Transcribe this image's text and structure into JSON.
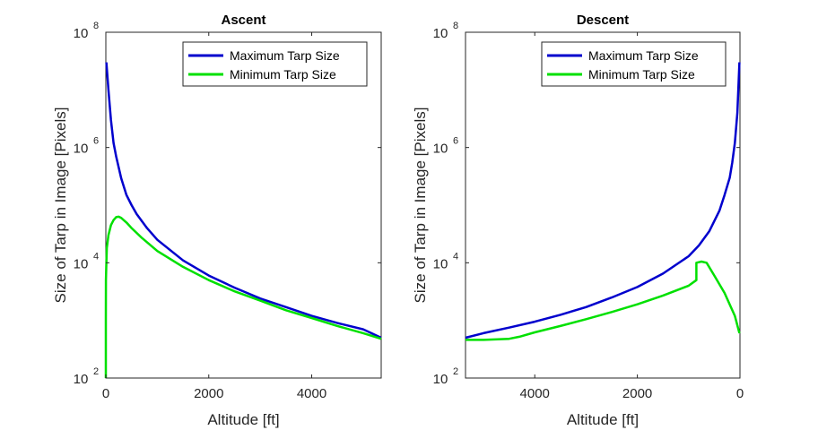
{
  "figure": {
    "ylabel": "Size of Tarp in Image [Pixels]",
    "xlabel": "Altitude [ft]"
  },
  "chart_data": [
    {
      "type": "line",
      "title": "Ascent",
      "xlabel": "Altitude [ft]",
      "ylabel": "Size of Tarp in Image [Pixels]",
      "xlim": [
        0,
        5350
      ],
      "ylim": [
        100,
        100000000
      ],
      "yscale": "log",
      "xdir": "normal",
      "xticks": [
        0,
        2000,
        4000
      ],
      "xtick_labels": [
        "0",
        "2000",
        "4000"
      ],
      "yticks": [
        100,
        10000,
        1000000,
        100000000
      ],
      "ytick_labels": [
        "10",
        "10",
        "10",
        "10"
      ],
      "ytick_exponents": [
        "2",
        "4",
        "6",
        "8"
      ],
      "grid": false,
      "legend_position": "top-right",
      "series": [
        {
          "name": "Maximum Tarp Size",
          "color": "#0000CD",
          "x": [
            10,
            50,
            100,
            150,
            200,
            300,
            400,
            500,
            600,
            800,
            1000,
            1500,
            2000,
            2500,
            3000,
            3500,
            4000,
            4500,
            5000,
            5350
          ],
          "y": [
            30000000,
            10000000,
            3000000,
            1200000,
            700000,
            290000,
            150000,
            100000,
            70000,
            40000,
            25000,
            11000,
            6000,
            3700,
            2400,
            1700,
            1200,
            900,
            700,
            500
          ]
        },
        {
          "name": "Minimum Tarp Size",
          "color": "#00E000",
          "x": [
            0,
            0,
            2,
            10,
            20,
            50,
            100,
            150,
            200,
            250,
            300,
            400,
            500,
            700,
            1000,
            1500,
            2000,
            2500,
            3000,
            3500,
            4000,
            4500,
            5000,
            5350
          ],
          "y": [
            100,
            1000,
            5000,
            10000,
            18000,
            30000,
            45000,
            55000,
            62000,
            63000,
            60000,
            50000,
            40000,
            27000,
            16000,
            8500,
            5000,
            3200,
            2200,
            1500,
            1100,
            800,
            600,
            480
          ]
        }
      ]
    },
    {
      "type": "line",
      "title": "Descent",
      "xlabel": "Altitude [ft]",
      "ylabel": "Size of Tarp in Image [Pixels]",
      "xlim": [
        0,
        5350
      ],
      "ylim": [
        100,
        100000000
      ],
      "yscale": "log",
      "xdir": "reverse",
      "xticks": [
        4000,
        2000,
        0
      ],
      "xtick_labels": [
        "4000",
        "2000",
        "0"
      ],
      "yticks": [
        100,
        10000,
        1000000,
        100000000
      ],
      "ytick_labels": [
        "10",
        "10",
        "10",
        "10"
      ],
      "ytick_exponents": [
        "2",
        "4",
        "6",
        "8"
      ],
      "grid": false,
      "legend_position": "top-right",
      "series": [
        {
          "name": "Maximum Tarp Size",
          "color": "#0000CD",
          "x": [
            5350,
            5000,
            4500,
            4000,
            3500,
            3000,
            2500,
            2000,
            1500,
            1000,
            800,
            600,
            400,
            300,
            200,
            150,
            100,
            50,
            10
          ],
          "y": [
            500,
            600,
            750,
            950,
            1250,
            1700,
            2500,
            3800,
            6500,
            13000,
            20000,
            35000,
            80000,
            150000,
            300000,
            550000,
            1200000,
            4000000,
            30000000
          ]
        },
        {
          "name": "Minimum Tarp Size",
          "color": "#00E000",
          "x": [
            5350,
            5000,
            4500,
            4300,
            4000,
            3500,
            3000,
            2500,
            2000,
            1500,
            1000,
            850,
            850,
            750,
            650,
            500,
            300,
            100,
            10
          ],
          "y": [
            460,
            460,
            480,
            520,
            620,
            800,
            1050,
            1400,
            1900,
            2700,
            4000,
            5000,
            10000,
            10500,
            10000,
            6000,
            3000,
            1200,
            600
          ]
        }
      ]
    }
  ]
}
